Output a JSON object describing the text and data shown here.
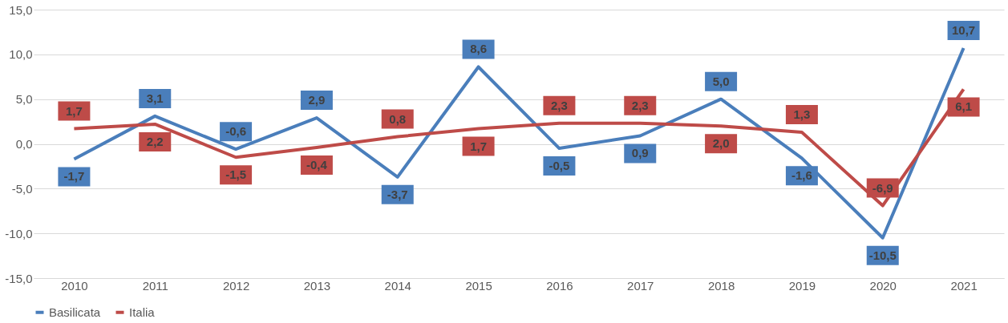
{
  "chart_data": {
    "type": "line",
    "categories": [
      "2010",
      "2011",
      "2012",
      "2013",
      "2014",
      "2015",
      "2016",
      "2017",
      "2018",
      "2019",
      "2020",
      "2021"
    ],
    "series": [
      {
        "name": "Basilicata",
        "color": "#4a7ebb",
        "values": [
          -1.7,
          3.1,
          -0.6,
          2.9,
          -3.7,
          8.6,
          -0.5,
          0.9,
          5.0,
          -1.6,
          -10.5,
          10.7
        ],
        "value_labels": [
          "-1,7",
          "3,1",
          "-0,6",
          "2,9",
          "-3,7",
          "8,6",
          "-0,5",
          "0,9",
          "5,0",
          "-1,6",
          "-10,5",
          "10,7"
        ]
      },
      {
        "name": "Italia",
        "color": "#be4b48",
        "values": [
          1.7,
          2.2,
          -1.5,
          -0.4,
          0.8,
          1.7,
          2.3,
          2.3,
          2.0,
          1.3,
          -6.9,
          6.1
        ],
        "value_labels": [
          "1,7",
          "2,2",
          "-1,5",
          "-0,4",
          "0,8",
          "1,7",
          "2,3",
          "2,3",
          "2,0",
          "1,3",
          "-6,9",
          "6,1"
        ]
      }
    ],
    "ylim": [
      -15,
      15
    ],
    "yticks": [
      {
        "value": -15,
        "label": "-15,0"
      },
      {
        "value": -10,
        "label": "-10,0"
      },
      {
        "value": -5,
        "label": "-5,0"
      },
      {
        "value": 0,
        "label": "0,0"
      },
      {
        "value": 5,
        "label": "5,0"
      },
      {
        "value": 10,
        "label": "10,0"
      },
      {
        "value": 15,
        "label": "15,0"
      }
    ],
    "grid": "y",
    "legend": "bottom",
    "marker": "none",
    "line_style": "solid"
  }
}
